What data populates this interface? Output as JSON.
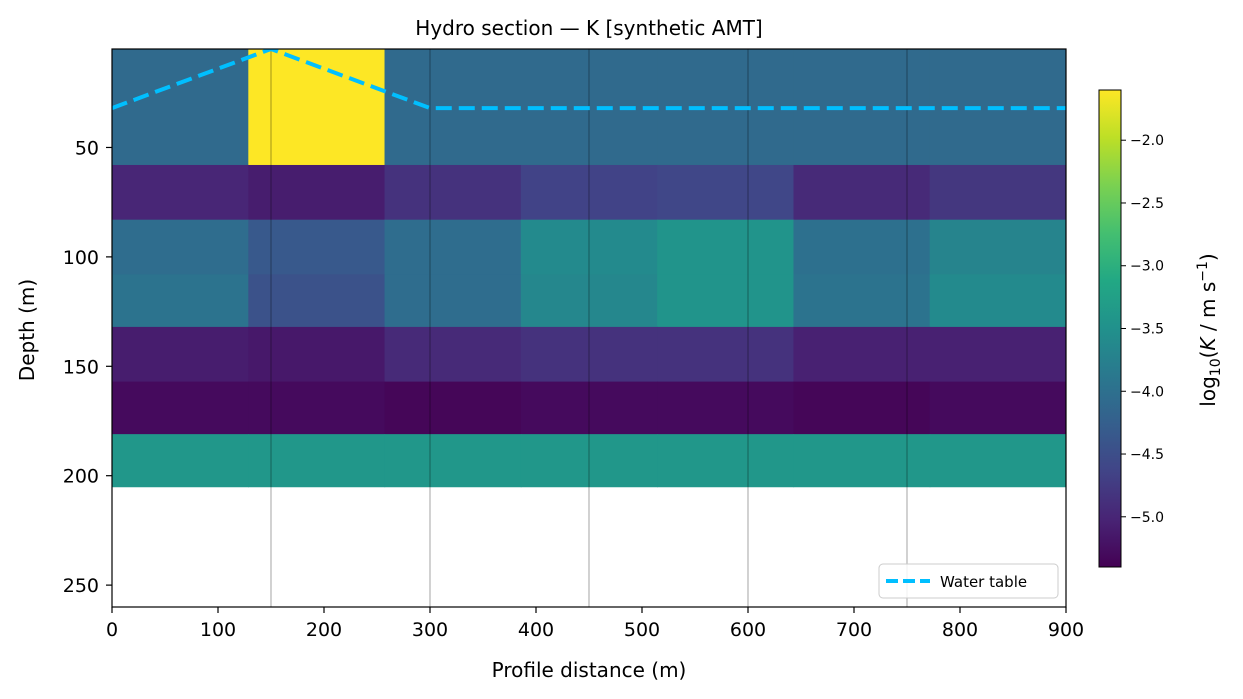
{
  "chart_data": {
    "type": "heatmap",
    "title": "Hydro section — K  [synthetic AMT]",
    "xlabel": "Profile distance (m)",
    "ylabel": "Depth (m)",
    "xlim": [
      0,
      900
    ],
    "ylim": [
      260,
      5
    ],
    "y_inverted": true,
    "grid": false,
    "x_ticks": [
      0,
      100,
      200,
      300,
      400,
      500,
      600,
      700,
      800,
      900
    ],
    "y_ticks": [
      50,
      100,
      150,
      200,
      250
    ],
    "station_lines_x": [
      150,
      300,
      450,
      600,
      750
    ],
    "colormap": "viridis",
    "colorbar": {
      "label": "log10(K / m s−1)",
      "label_main": "log",
      "label_sub": "10",
      "label_open": "(",
      "label_k": "K",
      "label_units": " / m s",
      "label_sup": "−1",
      "label_close": ")",
      "vmin": -5.4,
      "vmax": -1.6,
      "ticks": [
        -2.0,
        -2.5,
        -3.0,
        -3.5,
        -4.0,
        -4.5,
        -5.0
      ],
      "tick_labels": [
        "−2.0",
        "−2.5",
        "−3.0",
        "−3.5",
        "−4.0",
        "−4.5",
        "−5.0"
      ]
    },
    "x_edges": [
      0,
      128.6,
      257.1,
      385.7,
      514.3,
      642.9,
      771.4,
      900
    ],
    "layers": [
      {
        "top": 5,
        "bottom": 58,
        "values": [
          -4.1,
          -1.6,
          -4.1,
          -4.1,
          -4.1,
          -4.1,
          -4.1
        ]
      },
      {
        "top": 58,
        "bottom": 83,
        "values": [
          -5.0,
          -5.1,
          -4.85,
          -4.65,
          -4.6,
          -4.95,
          -4.8
        ]
      },
      {
        "top": 83,
        "bottom": 108,
        "values": [
          -4.05,
          -4.35,
          -4.05,
          -3.6,
          -3.45,
          -4.0,
          -3.7
        ]
      },
      {
        "top": 108,
        "bottom": 132,
        "values": [
          -3.95,
          -4.45,
          -4.05,
          -3.65,
          -3.45,
          -3.95,
          -3.6
        ]
      },
      {
        "top": 132,
        "bottom": 157,
        "values": [
          -5.1,
          -5.15,
          -4.95,
          -4.85,
          -4.85,
          -5.05,
          -5.05
        ]
      },
      {
        "top": 157,
        "bottom": 181,
        "values": [
          -5.3,
          -5.3,
          -5.35,
          -5.3,
          -5.3,
          -5.35,
          -5.3
        ]
      },
      {
        "top": 181,
        "bottom": 205,
        "values": [
          -3.4,
          -3.4,
          -3.4,
          -3.4,
          -3.4,
          -3.4,
          -3.4
        ]
      }
    ],
    "series": [
      {
        "name": "Water table",
        "type": "line",
        "style": "dashed",
        "color": "#00bfff",
        "x": [
          0,
          150,
          300,
          900
        ],
        "y": [
          32,
          5,
          32,
          32
        ]
      }
    ],
    "legend_position": "lower-right"
  }
}
